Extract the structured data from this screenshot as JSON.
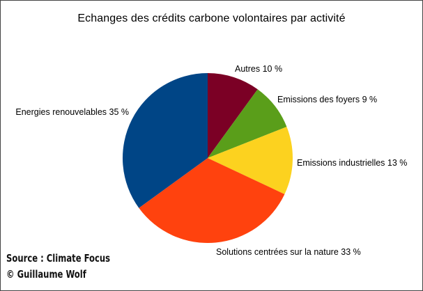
{
  "chart_data": {
    "type": "pie",
    "title": "Echanges des crédits carbone volontaires par activité",
    "start_angle_deg": 0,
    "direction": "clockwise",
    "slices": [
      {
        "label": "Autres 10 %",
        "value": 10,
        "color": "#7b0025"
      },
      {
        "label": "Emissions des foyers 9 %",
        "value": 9,
        "color": "#5a9e1a"
      },
      {
        "label": "Emissions industrielles 13 %",
        "value": 13,
        "color": "#fcd21f"
      },
      {
        "label": "Solutions centrées sur la nature 33 %",
        "value": 33,
        "color": "#ff420e"
      },
      {
        "label": "Energies renouvelables 35 %",
        "value": 35,
        "color": "#004586"
      }
    ]
  },
  "footer": {
    "source": "Source : Climate Focus",
    "credit": "© Guillaume Wolf"
  }
}
